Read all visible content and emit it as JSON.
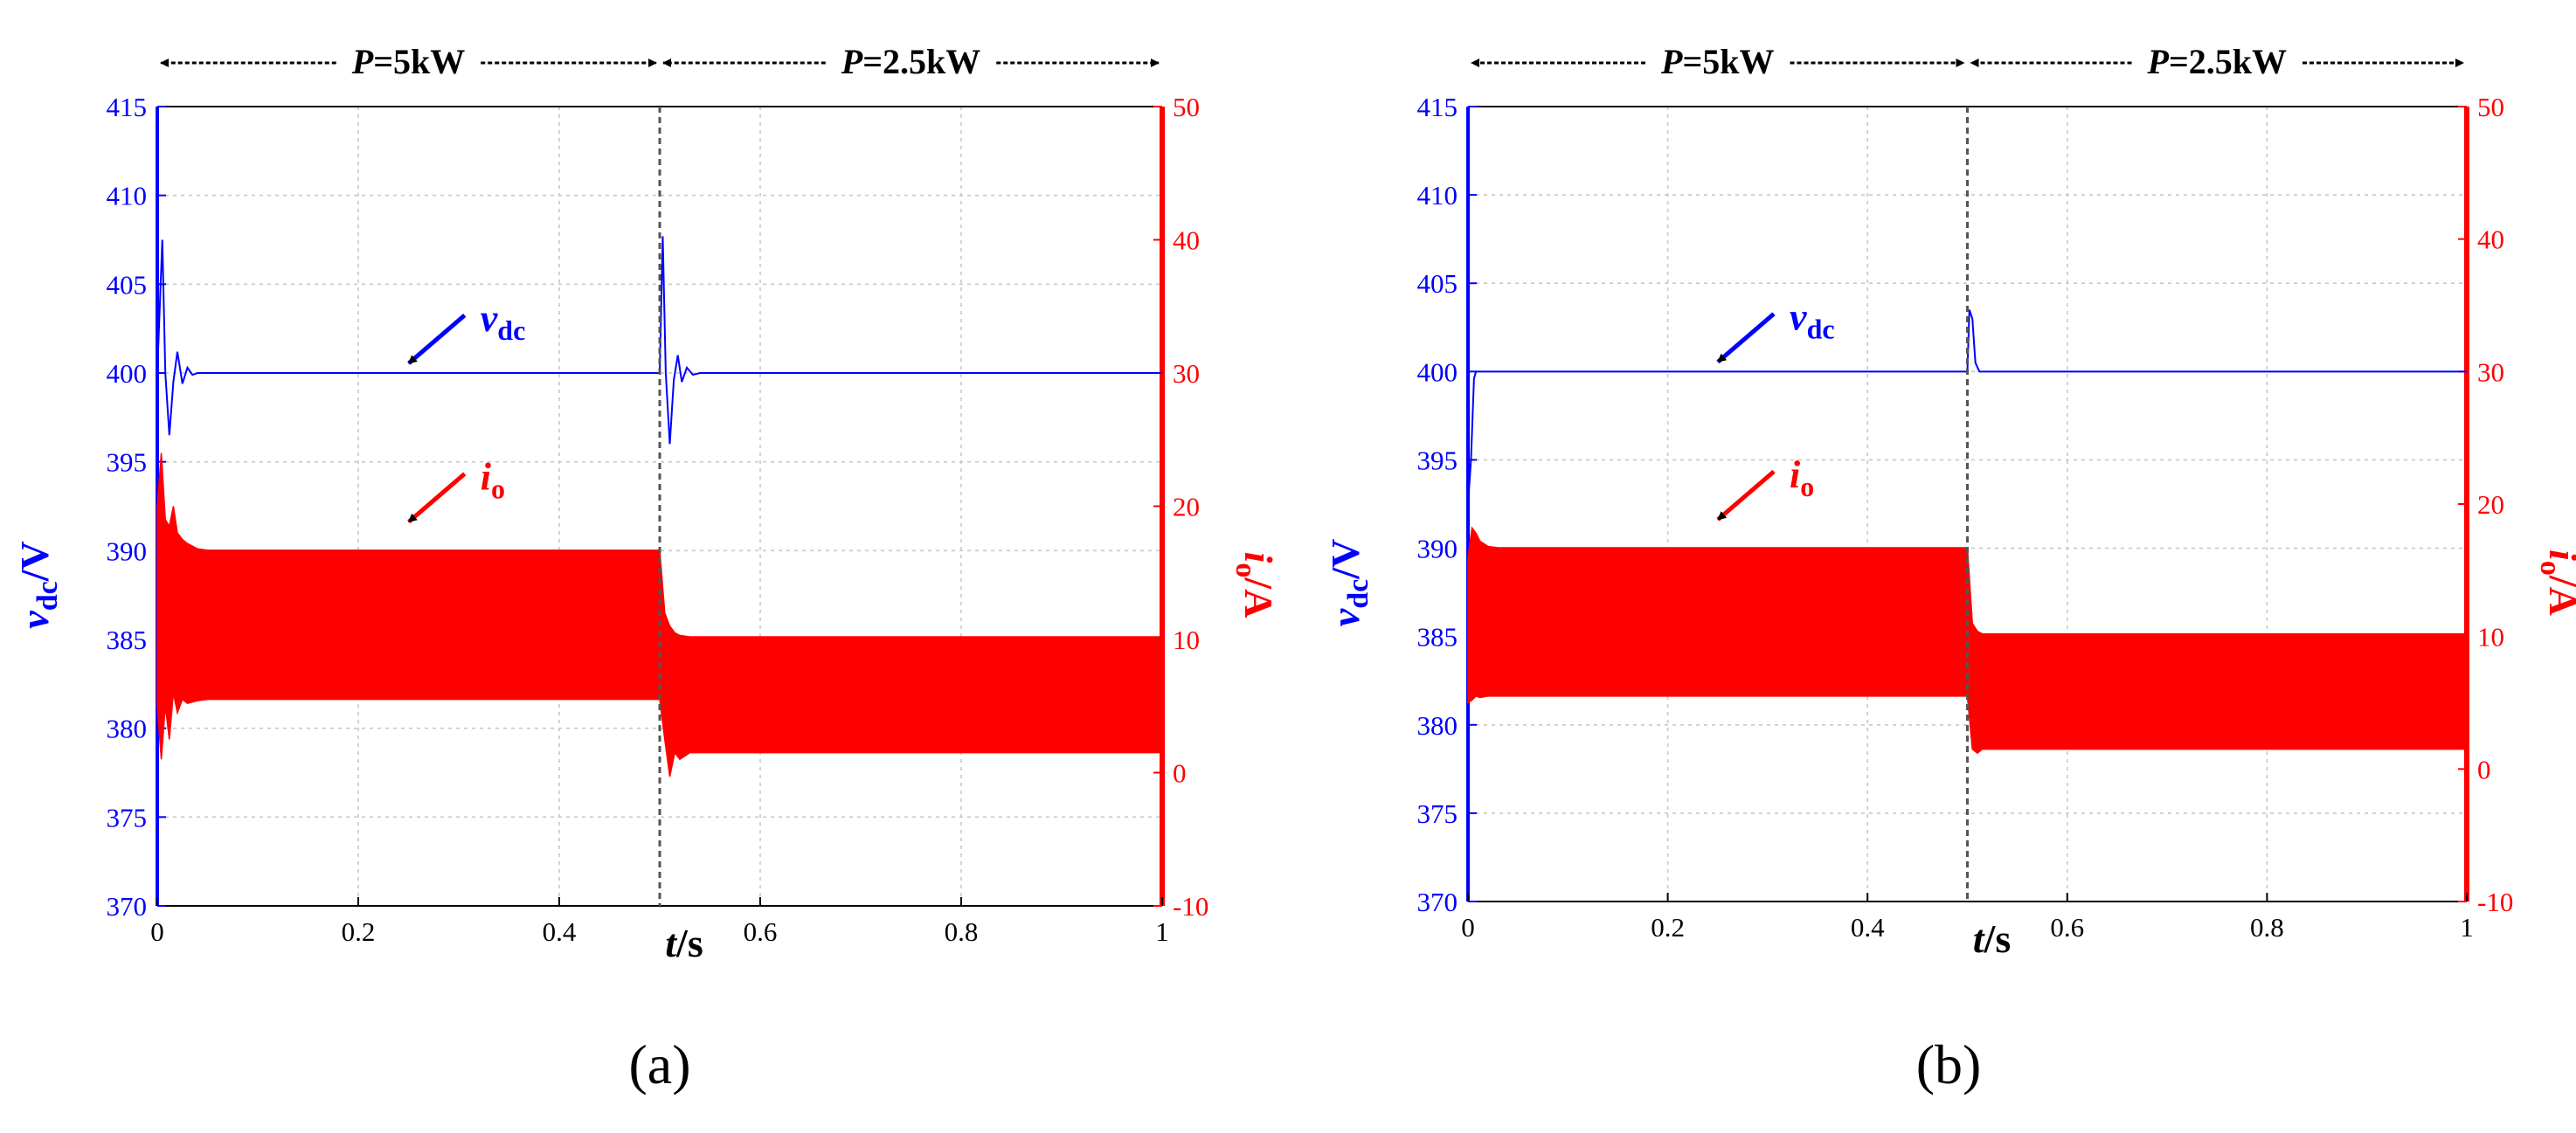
{
  "figure": {
    "panels": [
      {
        "label": "(a)",
        "label_letter": "a"
      },
      {
        "label": "(b)",
        "label_letter": "b"
      }
    ]
  },
  "colors": {
    "voltage": "#0000ff",
    "current": "#ff0000",
    "grid": "#c8c8c8",
    "divider": "#555555",
    "text": "#000000"
  },
  "icons": [
    "double-arrow-icon",
    "pointer-arrow-icon"
  ],
  "chart_data": [
    {
      "id": "a",
      "type": "line",
      "title": "(a)",
      "xlabel": "t/s",
      "xlabel_var": "t",
      "xlabel_unit": "/s",
      "ylabel_left": "vdc/V",
      "ylabel_left_var": "v",
      "ylabel_left_sub": "dc",
      "ylabel_left_unit": "/V",
      "ylabel_right": "io/A",
      "ylabel_right_var": "i",
      "ylabel_right_sub": "o",
      "ylabel_right_unit": "/A",
      "xlim": [
        0,
        1
      ],
      "ylim_left": [
        370,
        415
      ],
      "ylim_right": [
        -10,
        50
      ],
      "xticks": [
        0,
        0.2,
        0.4,
        0.6,
        0.8,
        1
      ],
      "xtick_labels": [
        "0",
        "0.2",
        "0.4",
        "0.6",
        "0.8",
        "1"
      ],
      "yticks_left": [
        370,
        375,
        380,
        385,
        390,
        395,
        400,
        405,
        410,
        415
      ],
      "yticks_left_labels": [
        "370",
        "375",
        "380",
        "385",
        "390",
        "395",
        "400",
        "405",
        "410",
        "415"
      ],
      "yticks_right": [
        -10,
        0,
        10,
        20,
        30,
        40,
        50
      ],
      "yticks_right_labels": [
        "-10",
        "0",
        "10",
        "20",
        "30",
        "40",
        "50"
      ],
      "grid": true,
      "step_time": 0.5,
      "annotations": {
        "region1": {
          "var": "P",
          "eq": "=",
          "value": "5kW"
        },
        "region2": {
          "var": "P",
          "eq": "=",
          "value": "2.5kW"
        },
        "vdc": {
          "var": "v",
          "sub": "dc"
        },
        "io": {
          "var": "i",
          "sub": "o"
        }
      },
      "series": [
        {
          "name": "vdc",
          "axis": "left",
          "x": [
            0,
            0.005,
            0.008,
            0.012,
            0.016,
            0.02,
            0.025,
            0.03,
            0.035,
            0.04,
            0.05,
            0.495,
            0.5,
            0.503,
            0.506,
            0.51,
            0.514,
            0.518,
            0.522,
            0.527,
            0.533,
            0.54,
            1
          ],
          "values": [
            400,
            407.5,
            400,
            396.5,
            399.5,
            401.2,
            399.4,
            400.3,
            399.9,
            400,
            400,
            400,
            400,
            407.7,
            400,
            396,
            399.6,
            401,
            399.5,
            400.3,
            399.9,
            400,
            400
          ]
        },
        {
          "name": "io",
          "axis": "right",
          "display": "envelope",
          "x": [
            0,
            0.004,
            0.008,
            0.012,
            0.016,
            0.02,
            0.025,
            0.03,
            0.04,
            0.05,
            0.495,
            0.5,
            0.505,
            0.51,
            0.515,
            0.52,
            0.53,
            0.54,
            1
          ],
          "upper": [
            20,
            24,
            19,
            18.5,
            20,
            18,
            17.5,
            17.2,
            16.8,
            16.7,
            16.7,
            16.7,
            12,
            11,
            10.5,
            10.3,
            10.2,
            10.2,
            10.2
          ],
          "lower": [
            5,
            1,
            5,
            2.5,
            6,
            4.5,
            5.5,
            5.2,
            5.4,
            5.5,
            5.5,
            5.5,
            2.5,
            -0.3,
            1.5,
            1,
            1.5,
            1.5,
            1.5
          ]
        }
      ]
    },
    {
      "id": "b",
      "type": "line",
      "title": "(b)",
      "xlabel": "t/s",
      "xlabel_var": "t",
      "xlabel_unit": "/s",
      "ylabel_left": "vdc/V",
      "ylabel_left_var": "v",
      "ylabel_left_sub": "dc",
      "ylabel_left_unit": "/V",
      "ylabel_right": "io/A",
      "ylabel_right_var": "i",
      "ylabel_right_sub": "o",
      "ylabel_right_unit": "/A",
      "xlim": [
        0,
        1
      ],
      "ylim_left": [
        370,
        415
      ],
      "ylim_right": [
        -10,
        50
      ],
      "xticks": [
        0,
        0.2,
        0.4,
        0.6,
        0.8,
        1
      ],
      "xtick_labels": [
        "0",
        "0.2",
        "0.4",
        "0.6",
        "0.8",
        "1"
      ],
      "yticks_left": [
        370,
        375,
        380,
        385,
        390,
        395,
        400,
        405,
        410,
        415
      ],
      "yticks_left_labels": [
        "370",
        "375",
        "380",
        "385",
        "390",
        "395",
        "400",
        "405",
        "410",
        "415"
      ],
      "yticks_right": [
        -10,
        0,
        10,
        20,
        30,
        40,
        50
      ],
      "yticks_right_labels": [
        "-10",
        "0",
        "10",
        "20",
        "30",
        "40",
        "50"
      ],
      "grid": true,
      "step_time": 0.5,
      "annotations": {
        "region1": {
          "var": "P",
          "eq": "=",
          "value": "5kW"
        },
        "region2": {
          "var": "P",
          "eq": "=",
          "value": "2.5kW"
        },
        "vdc": {
          "var": "v",
          "sub": "dc"
        },
        "io": {
          "var": "i",
          "sub": "o"
        }
      },
      "series": [
        {
          "name": "vdc",
          "axis": "left",
          "x": [
            0,
            0.003,
            0.006,
            0.008,
            0.012,
            0.02,
            0.495,
            0.5,
            0.502,
            0.505,
            0.508,
            0.512,
            0.52,
            1
          ],
          "values": [
            392.5,
            395,
            399.6,
            400,
            400,
            400,
            400,
            400,
            403.5,
            403,
            400.5,
            400,
            400,
            400
          ]
        },
        {
          "name": "io",
          "axis": "right",
          "display": "envelope",
          "x": [
            0,
            0.004,
            0.008,
            0.012,
            0.02,
            0.03,
            0.495,
            0.5,
            0.505,
            0.51,
            0.515,
            0.52,
            1
          ],
          "upper": [
            16,
            18.2,
            17.8,
            17.2,
            16.8,
            16.7,
            16.7,
            16.7,
            11,
            10.4,
            10.2,
            10.2,
            10.2
          ],
          "lower": [
            5,
            5.2,
            5.5,
            5.4,
            5.5,
            5.5,
            5.5,
            5.5,
            1.5,
            1.2,
            1.5,
            1.5,
            1.5
          ]
        }
      ]
    }
  ]
}
